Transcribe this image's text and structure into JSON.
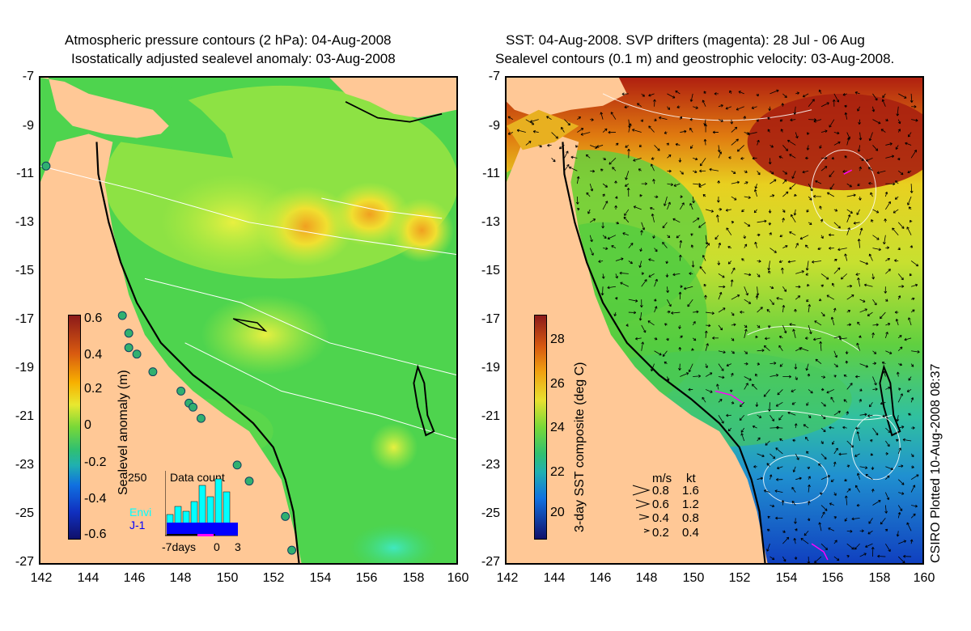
{
  "left_panel": {
    "title_line1": "Atmospheric pressure contours (2 hPa): 04-Aug-2008",
    "title_line2": "Isostatically adjusted sealevel anomaly: 03-Aug-2008",
    "colorbar": {
      "label": "Sealevel anomaly (m)",
      "ticks": [
        "0.6",
        "0.4",
        "0.2",
        "0",
        "-0.2",
        "-0.4",
        "-0.6"
      ]
    },
    "data_count": {
      "title": "Data count",
      "y_max": "250",
      "x_labels": [
        "-7days",
        "0",
        "3"
      ],
      "series": [
        {
          "name": "Envi",
          "color": "#00ffff"
        },
        {
          "name": "J-1",
          "color": "#0000ff"
        }
      ]
    }
  },
  "right_panel": {
    "title_line1": "SST: 04-Aug-2008. SVP drifters (magenta): 28 Jul - 06 Aug",
    "title_line2": "Sealevel contours (0.1 m) and geostrophic velocity: 03-Aug-2008.",
    "colorbar": {
      "label": "3-day SST composite (deg C)",
      "ticks": [
        "28",
        "26",
        "24",
        "22",
        "20"
      ]
    },
    "velocity_legend": {
      "header_ms": "m/s",
      "header_kt": "kt",
      "rows": [
        {
          "ms": "0.8",
          "kt": "1.6"
        },
        {
          "ms": "0.6",
          "kt": "1.2"
        },
        {
          "ms": "0.4",
          "kt": "0.8"
        },
        {
          "ms": "0.2",
          "kt": "0.4"
        }
      ]
    },
    "stamp": "CSIRO Plotted 10-Aug-2008 08:37"
  },
  "axes": {
    "y_ticks": [
      "-7",
      "-9",
      "-11",
      "-13",
      "-15",
      "-17",
      "-19",
      "-21",
      "-23",
      "-25",
      "-27"
    ],
    "x_ticks": [
      "142",
      "144",
      "146",
      "148",
      "150",
      "152",
      "154",
      "156",
      "158",
      "160"
    ]
  },
  "colors": {
    "land": "#ffc896",
    "ocean_green": "#4ed44e",
    "coast_contour": "#000000",
    "drifter": "#ff00ff"
  }
}
